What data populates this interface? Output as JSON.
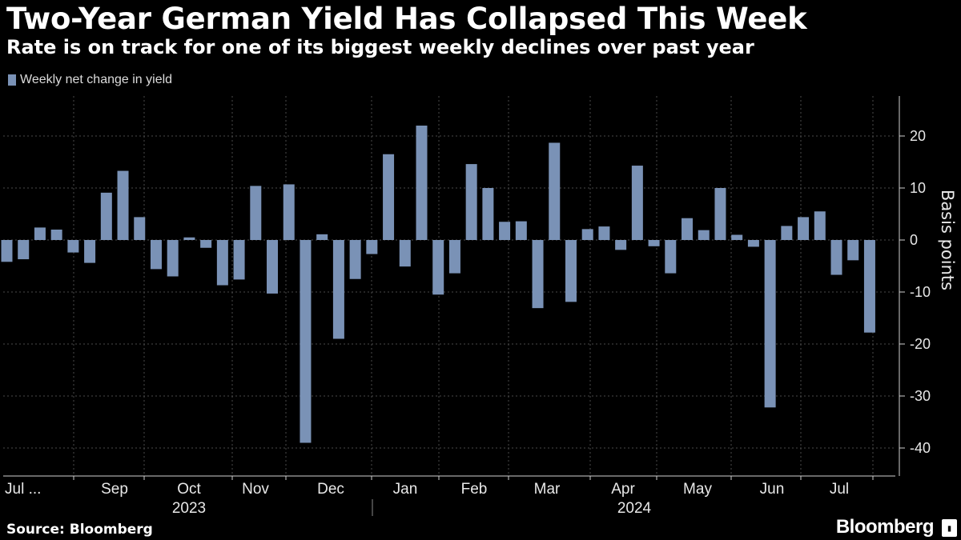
{
  "header": {
    "title": "Two-Year German Yield Has Collapsed This Week",
    "subtitle": "Rate is on track for one of its biggest weekly declines over past year"
  },
  "legend": {
    "label": "Weekly net change in yield",
    "color": "#7a92b6"
  },
  "footer": {
    "source": "Source: Bloomberg",
    "brand": "Bloomberg",
    "brand_icon": "bloomberg-terminal-icon"
  },
  "chart_data": {
    "type": "bar",
    "frequency": "weekly",
    "ylabel": "Basis points",
    "ylim": [
      -45,
      28
    ],
    "yticks": [
      20,
      10,
      0,
      -10,
      -20,
      -30,
      -40
    ],
    "ytick_labels": [
      "20",
      "10",
      "0",
      "-10",
      "-20",
      "-30",
      "-40"
    ],
    "grid": true,
    "y_axis_side": "right",
    "legend_position": "top-left",
    "month_labels": [
      "Jul ...",
      "Sep",
      "Oct",
      "Nov",
      "Dec",
      "Jan",
      "Feb",
      "Mar",
      "Apr",
      "May",
      "Jun",
      "Jul"
    ],
    "year_labels": [
      "2023",
      "2024"
    ],
    "series": [
      {
        "name": "Weekly net change in yield",
        "color": "#7a92b6",
        "values": [
          -4.2,
          -3.7,
          2.4,
          2.0,
          -2.4,
          -4.4,
          9.1,
          13.3,
          4.4,
          -5.6,
          -7.0,
          0.5,
          -1.5,
          -8.7,
          -7.6,
          10.4,
          -10.3,
          10.7,
          -39.0,
          1.1,
          -19.0,
          -7.5,
          -2.7,
          16.5,
          -5.1,
          22.0,
          -10.5,
          -6.4,
          14.6,
          10.0,
          3.5,
          3.6,
          -13.1,
          18.7,
          -11.9,
          2.1,
          2.6,
          -1.9,
          14.3,
          -1.2,
          -6.4,
          4.2,
          1.9,
          10.0,
          1.0,
          -1.3,
          -32.2,
          2.7,
          4.4,
          5.5,
          -6.7,
          -3.9,
          -17.8
        ]
      }
    ]
  }
}
